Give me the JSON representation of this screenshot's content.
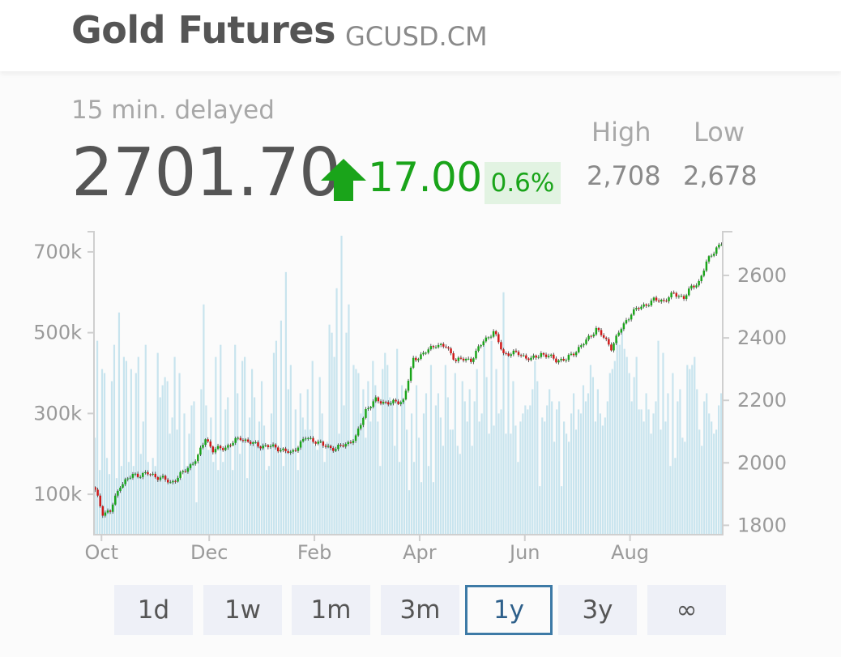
{
  "header": {
    "title": "Gold Futures",
    "symbol": "GCUSD.CM"
  },
  "quote": {
    "delay_note": "15 min. delayed",
    "price": "2701.70",
    "change": "17.00",
    "change_pct": "0.6%",
    "direction": "up",
    "high_label": "High",
    "high_value": "2,708",
    "low_label": "Low",
    "low_value": "2,678"
  },
  "colors": {
    "up": "#1aa41a",
    "down": "#d01818",
    "volume": "#c8e4ee",
    "active_border": "#3d7aa6"
  },
  "icons": {
    "direction": "up-arrow-icon"
  },
  "ranges": [
    {
      "label": "1d",
      "active": false
    },
    {
      "label": "1w",
      "active": false
    },
    {
      "label": "1m",
      "active": false
    },
    {
      "label": "3m",
      "active": false
    },
    {
      "label": "1y",
      "active": true
    },
    {
      "label": "3y",
      "active": false
    },
    {
      "label": "∞",
      "active": false
    }
  ],
  "chart_data": {
    "type": "candlestick",
    "x_tick_labels": [
      "Oct",
      "Dec",
      "Feb",
      "Apr",
      "Jun",
      "Aug"
    ],
    "price_axis": {
      "side": "right",
      "ticks": [
        1800,
        2000,
        2200,
        2400,
        2600
      ],
      "range": [
        1770,
        2740
      ]
    },
    "volume_axis": {
      "side": "left",
      "ticks": [
        "100k",
        "300k",
        "500k",
        "700k"
      ],
      "tick_values": [
        100000,
        300000,
        500000,
        700000
      ],
      "range": [
        0,
        750000
      ]
    },
    "close_series": [
      [
        0,
        1910
      ],
      [
        3,
        1840
      ],
      [
        6,
        1845
      ],
      [
        10,
        1930
      ],
      [
        15,
        1960
      ],
      [
        21,
        1965
      ],
      [
        27,
        1950
      ],
      [
        30,
        1935
      ],
      [
        36,
        1975
      ],
      [
        41,
        2020
      ],
      [
        44,
        2080
      ],
      [
        47,
        2040
      ],
      [
        52,
        2050
      ],
      [
        58,
        2080
      ],
      [
        63,
        2060
      ],
      [
        66,
        2055
      ],
      [
        72,
        2050
      ],
      [
        78,
        2030
      ],
      [
        84,
        2080
      ],
      [
        88,
        2070
      ],
      [
        91,
        2055
      ],
      [
        96,
        2045
      ],
      [
        100,
        2060
      ],
      [
        104,
        2080
      ],
      [
        108,
        2170
      ],
      [
        112,
        2200
      ],
      [
        118,
        2190
      ],
      [
        123,
        2200
      ],
      [
        127,
        2330
      ],
      [
        133,
        2360
      ],
      [
        136,
        2380
      ],
      [
        140,
        2370
      ],
      [
        144,
        2330
      ],
      [
        150,
        2330
      ],
      [
        155,
        2390
      ],
      [
        159,
        2420
      ],
      [
        163,
        2350
      ],
      [
        169,
        2350
      ],
      [
        174,
        2330
      ],
      [
        178,
        2350
      ],
      [
        184,
        2330
      ],
      [
        188,
        2330
      ],
      [
        192,
        2360
      ],
      [
        196,
        2390
      ],
      [
        200,
        2430
      ],
      [
        203,
        2400
      ],
      [
        206,
        2370
      ],
      [
        210,
        2430
      ],
      [
        214,
        2480
      ],
      [
        218,
        2500
      ],
      [
        223,
        2520
      ],
      [
        227,
        2520
      ],
      [
        231,
        2540
      ],
      [
        235,
        2530
      ],
      [
        238,
        2560
      ],
      [
        241,
        2580
      ],
      [
        244,
        2640
      ],
      [
        248,
        2690
      ],
      [
        250,
        2702
      ]
    ],
    "volume_series": [
      240,
      480,
      160,
      410,
      400,
      190,
      150,
      380,
      470,
      140,
      550,
      170,
      440,
      430,
      180,
      410,
      170,
      400,
      440,
      200,
      280,
      470,
      180,
      150,
      190,
      170,
      450,
      340,
      370,
      390,
      380,
      250,
      290,
      440,
      260,
      400,
      140,
      300,
      170,
      250,
      320,
      330,
      80,
      180,
      360,
      570,
      320,
      210,
      290,
      180,
      440,
      160,
      470,
      180,
      310,
      340,
      220,
      160,
      470,
      350,
      200,
      430,
      440,
      140,
      290,
      410,
      340,
      230,
      280,
      380,
      270,
      160,
      170,
      300,
      450,
      480,
      200,
      530,
      170,
      650,
      360,
      420,
      210,
      310,
      160,
      350,
      290,
      260,
      360,
      260,
      430,
      220,
      210,
      390,
      300,
      180,
      230,
      520,
      500,
      440,
      610,
      250,
      740,
      320,
      500,
      570,
      230,
      420,
      410,
      400,
      300,
      360,
      240,
      380,
      280,
      430,
      370,
      280,
      170,
      410,
      450,
      420,
      340,
      330,
      220,
      460,
      180,
      370,
      330,
      260,
      110,
      300,
      180,
      370,
      240,
      130,
      300,
      350,
      170,
      420,
      130,
      320,
      350,
      290,
      220,
      420,
      340,
      260,
      260,
      400,
      220,
      200,
      380,
      330,
      280,
      360,
      220,
      330,
      410,
      280,
      300,
      470,
      390,
      250,
      480,
      270,
      410,
      300,
      310,
      600,
      250,
      450,
      250,
      380,
      270,
      180,
      280,
      300,
      320,
      310,
      320,
      360,
      430,
      380,
      120,
      290,
      280,
      320,
      360,
      330,
      230,
      310,
      330,
      120,
      280,
      250,
      230,
      300,
      350,
      260,
      310,
      300,
      370,
      330,
      350,
      420,
      390,
      280,
      360,
      300,
      270,
      290,
      330,
      400,
      410,
      430,
      480,
      470,
      510,
      460,
      440,
      400,
      330,
      390,
      440,
      310,
      310,
      280,
      350,
      310,
      250,
      300,
      330,
      480,
      260,
      450,
      280,
      350,
      170,
      400,
      190,
      330,
      360,
      240,
      230,
      420,
      410,
      420,
      440,
      360,
      260,
      220,
      330,
      350,
      300,
      280,
      250,
      260,
      320,
      350
    ]
  }
}
